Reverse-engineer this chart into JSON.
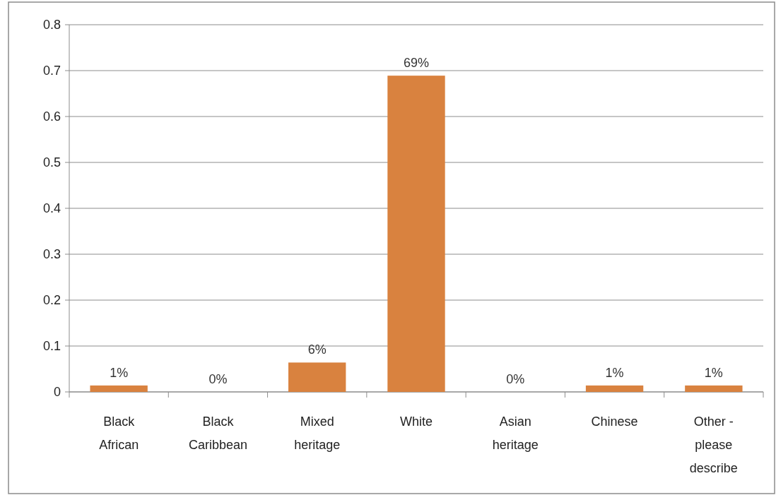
{
  "chart_data": {
    "type": "bar",
    "categories": [
      "Black African",
      "Black Caribbean",
      "Mixed heritage",
      "White",
      "Asian heritage",
      "Chinese",
      "Other - please describe"
    ],
    "values": [
      0.014,
      0,
      0.064,
      0.689,
      0,
      0.014,
      0.014
    ],
    "value_labels": [
      "1%",
      "0%",
      "6%",
      "69%",
      "0%",
      "1%",
      "1%"
    ],
    "color": "#d9823f",
    "ylim": [
      0,
      0.8
    ],
    "yticks": [
      0,
      0.1,
      0.2,
      0.3,
      0.4,
      0.5,
      0.6,
      0.7,
      0.8
    ],
    "grid": "y"
  }
}
